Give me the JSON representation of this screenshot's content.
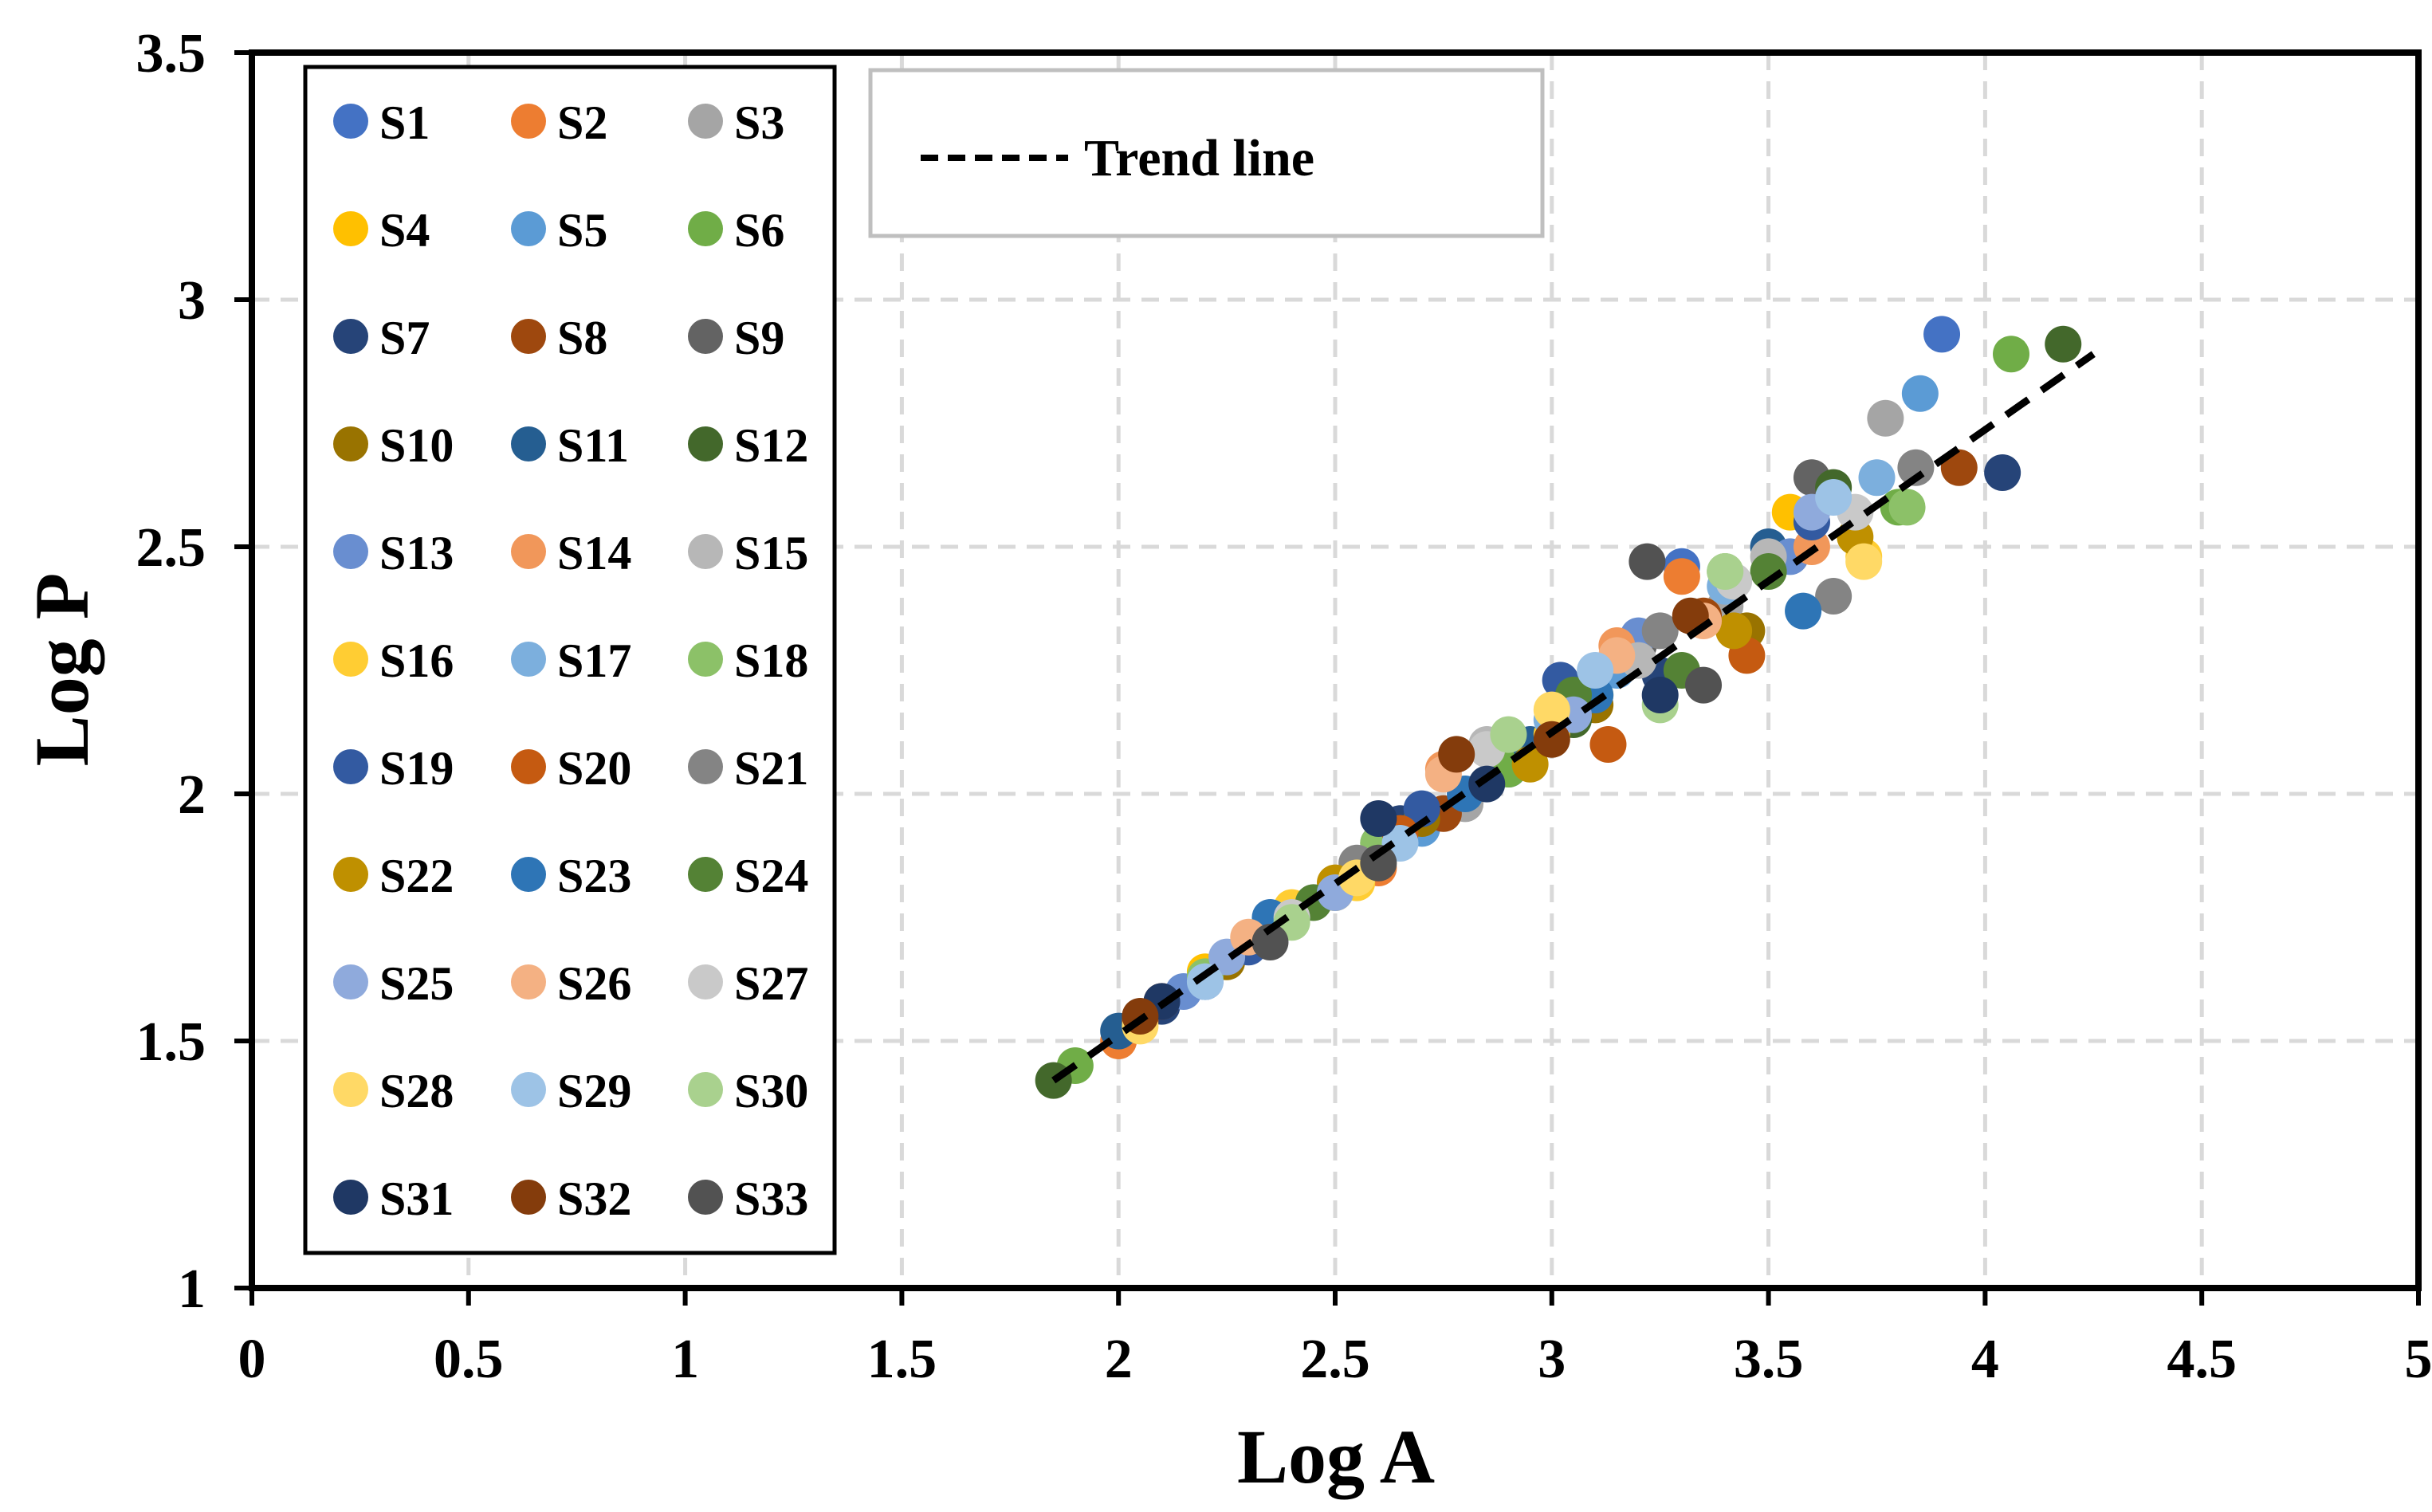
{
  "chart_data": {
    "type": "scatter",
    "title": "",
    "xlabel": "Log A",
    "ylabel": "Log P",
    "xlim": [
      0,
      5
    ],
    "ylim": [
      1,
      3.5
    ],
    "xticks": [
      "0",
      "0.5",
      "1",
      "1.5",
      "2",
      "2.5",
      "3",
      "3.5",
      "4",
      "4.5",
      "5"
    ],
    "yticks": [
      "1",
      "1.5",
      "2",
      "2.5",
      "3",
      "3.5"
    ],
    "grid": true,
    "legend_position": "left",
    "series": [
      {
        "name": "S1",
        "color": "#4472C4",
        "points": [
          [
            3.9,
            2.93
          ],
          [
            2.9,
            2.05
          ],
          [
            3.3,
            2.46
          ],
          [
            2.2,
            1.62
          ]
        ]
      },
      {
        "name": "S2",
        "color": "#ED7D31",
        "points": [
          [
            2.0,
            1.5
          ],
          [
            3.3,
            2.44
          ],
          [
            2.6,
            1.85
          ],
          [
            3.0,
            2.12
          ]
        ]
      },
      {
        "name": "S3",
        "color": "#A5A5A5",
        "points": [
          [
            3.77,
            2.76
          ],
          [
            2.8,
            1.98
          ],
          [
            3.4,
            2.38
          ],
          [
            2.4,
            1.76
          ]
        ]
      },
      {
        "name": "S4",
        "color": "#FFC000",
        "points": [
          [
            3.55,
            2.57
          ],
          [
            2.5,
            1.8
          ],
          [
            3.1,
            2.2
          ],
          [
            2.2,
            1.64
          ]
        ]
      },
      {
        "name": "S5",
        "color": "#5B9BD5",
        "points": [
          [
            3.85,
            2.81
          ],
          [
            2.7,
            1.93
          ],
          [
            3.15,
            2.25
          ],
          [
            2.3,
            1.7
          ]
        ]
      },
      {
        "name": "S6",
        "color": "#70AD47",
        "points": [
          [
            4.06,
            2.89
          ],
          [
            3.8,
            2.58
          ],
          [
            2.9,
            2.05
          ],
          [
            1.9,
            1.45
          ]
        ]
      },
      {
        "name": "S7",
        "color": "#264478",
        "points": [
          [
            4.04,
            2.65
          ],
          [
            2.65,
            1.94
          ],
          [
            3.25,
            2.24
          ],
          [
            2.1,
            1.57
          ]
        ]
      },
      {
        "name": "S8",
        "color": "#9E480E",
        "points": [
          [
            3.94,
            2.66
          ],
          [
            3.35,
            2.36
          ],
          [
            2.75,
            1.96
          ],
          [
            2.1,
            1.58
          ]
        ]
      },
      {
        "name": "S9",
        "color": "#636363",
        "points": [
          [
            3.6,
            2.64
          ],
          [
            2.6,
            1.9
          ],
          [
            3.2,
            2.3
          ],
          [
            2.35,
            1.72
          ]
        ]
      },
      {
        "name": "S10",
        "color": "#997300",
        "points": [
          [
            3.45,
            2.33
          ],
          [
            2.7,
            1.95
          ],
          [
            3.1,
            2.18
          ],
          [
            2.25,
            1.66
          ]
        ]
      },
      {
        "name": "S11",
        "color": "#255E91",
        "points": [
          [
            3.5,
            2.5
          ],
          [
            2.95,
            2.1
          ],
          [
            2.55,
            1.84
          ],
          [
            2.0,
            1.52
          ]
        ]
      },
      {
        "name": "S12",
        "color": "#43682B",
        "points": [
          [
            4.18,
            2.91
          ],
          [
            3.65,
            2.62
          ],
          [
            3.05,
            2.15
          ],
          [
            1.85,
            1.42
          ]
        ]
      },
      {
        "name": "S13",
        "color": "#698ED0",
        "points": [
          [
            3.2,
            2.32
          ],
          [
            2.6,
            1.88
          ],
          [
            2.15,
            1.6
          ],
          [
            3.55,
            2.48
          ]
        ]
      },
      {
        "name": "S14",
        "color": "#F1975A",
        "points": [
          [
            2.75,
            2.05
          ],
          [
            3.15,
            2.3
          ],
          [
            2.35,
            1.74
          ],
          [
            3.6,
            2.5
          ]
        ]
      },
      {
        "name": "S15",
        "color": "#B7B7B7",
        "points": [
          [
            3.5,
            2.48
          ],
          [
            2.85,
            2.1
          ],
          [
            3.2,
            2.27
          ],
          [
            2.45,
            1.78
          ]
        ]
      },
      {
        "name": "S16",
        "color": "#FFCD33",
        "points": [
          [
            3.72,
            2.48
          ],
          [
            2.55,
            1.82
          ],
          [
            3.0,
            2.12
          ],
          [
            2.4,
            1.77
          ]
        ]
      },
      {
        "name": "S17",
        "color": "#7CAFDD",
        "points": [
          [
            3.75,
            2.64
          ],
          [
            3.0,
            2.15
          ],
          [
            2.5,
            1.81
          ],
          [
            3.4,
            2.42
          ]
        ]
      },
      {
        "name": "S18",
        "color": "#8CC168",
        "points": [
          [
            3.82,
            2.58
          ],
          [
            3.4,
            2.45
          ],
          [
            2.6,
            1.9
          ],
          [
            2.2,
            1.63
          ]
        ]
      },
      {
        "name": "S19",
        "color": "#335AA1",
        "points": [
          [
            3.02,
            2.23
          ],
          [
            3.6,
            2.55
          ],
          [
            2.7,
            1.97
          ],
          [
            2.3,
            1.69
          ]
        ]
      },
      {
        "name": "S20",
        "color": "#C55A11",
        "points": [
          [
            3.13,
            2.1
          ],
          [
            3.45,
            2.28
          ],
          [
            2.65,
            1.92
          ],
          [
            2.05,
            1.54
          ]
        ]
      },
      {
        "name": "S21",
        "color": "#848484",
        "points": [
          [
            3.84,
            2.66
          ],
          [
            3.65,
            2.4
          ],
          [
            3.25,
            2.33
          ],
          [
            2.55,
            1.86
          ]
        ]
      },
      {
        "name": "S22",
        "color": "#BF9000",
        "points": [
          [
            3.42,
            2.33
          ],
          [
            3.7,
            2.52
          ],
          [
            2.5,
            1.82
          ],
          [
            2.95,
            2.06
          ]
        ]
      },
      {
        "name": "S23",
        "color": "#2E75B6",
        "points": [
          [
            3.58,
            2.37
          ],
          [
            2.35,
            1.75
          ],
          [
            3.1,
            2.2
          ],
          [
            2.8,
            2.0
          ]
        ]
      },
      {
        "name": "S24",
        "color": "#548235",
        "points": [
          [
            3.5,
            2.45
          ],
          [
            3.05,
            2.2
          ],
          [
            2.45,
            1.78
          ],
          [
            3.3,
            2.25
          ]
        ]
      },
      {
        "name": "S25",
        "color": "#8FAADC",
        "points": [
          [
            3.6,
            2.57
          ],
          [
            2.5,
            1.8
          ],
          [
            3.05,
            2.16
          ],
          [
            2.25,
            1.67
          ]
        ]
      },
      {
        "name": "S26",
        "color": "#F4B183",
        "points": [
          [
            3.15,
            2.28
          ],
          [
            2.75,
            2.04
          ],
          [
            3.35,
            2.35
          ],
          [
            2.3,
            1.71
          ]
        ]
      },
      {
        "name": "S27",
        "color": "#C9C9C9",
        "points": [
          [
            3.42,
            2.43
          ],
          [
            2.85,
            2.09
          ],
          [
            3.7,
            2.57
          ],
          [
            2.4,
            1.75
          ]
        ]
      },
      {
        "name": "S28",
        "color": "#FFD966",
        "points": [
          [
            3.72,
            2.47
          ],
          [
            3.0,
            2.17
          ],
          [
            2.55,
            1.83
          ],
          [
            2.05,
            1.53
          ]
        ]
      },
      {
        "name": "S29",
        "color": "#9DC3E6",
        "points": [
          [
            3.65,
            2.6
          ],
          [
            3.1,
            2.25
          ],
          [
            2.65,
            1.9
          ],
          [
            2.2,
            1.62
          ]
        ]
      },
      {
        "name": "S30",
        "color": "#A9D18E",
        "points": [
          [
            3.4,
            2.45
          ],
          [
            3.25,
            2.18
          ],
          [
            2.9,
            2.12
          ],
          [
            2.4,
            1.74
          ]
        ]
      },
      {
        "name": "S31",
        "color": "#1F3864",
        "points": [
          [
            3.25,
            2.2
          ],
          [
            2.85,
            2.02
          ],
          [
            2.6,
            1.95
          ],
          [
            2.1,
            1.58
          ]
        ]
      },
      {
        "name": "S32",
        "color": "#843C0C",
        "points": [
          [
            2.78,
            2.08
          ],
          [
            3.0,
            2.11
          ],
          [
            3.32,
            2.36
          ],
          [
            2.05,
            1.55
          ]
        ]
      },
      {
        "name": "S33",
        "color": "#525252",
        "points": [
          [
            3.22,
            2.47
          ],
          [
            3.35,
            2.22
          ],
          [
            2.6,
            1.86
          ],
          [
            2.35,
            1.7
          ]
        ]
      }
    ],
    "trend_line": {
      "name": "Trend line",
      "x": [
        1.85,
        4.25
      ],
      "y": [
        1.42,
        2.89
      ],
      "style": "dashed",
      "color": "#000000"
    }
  }
}
